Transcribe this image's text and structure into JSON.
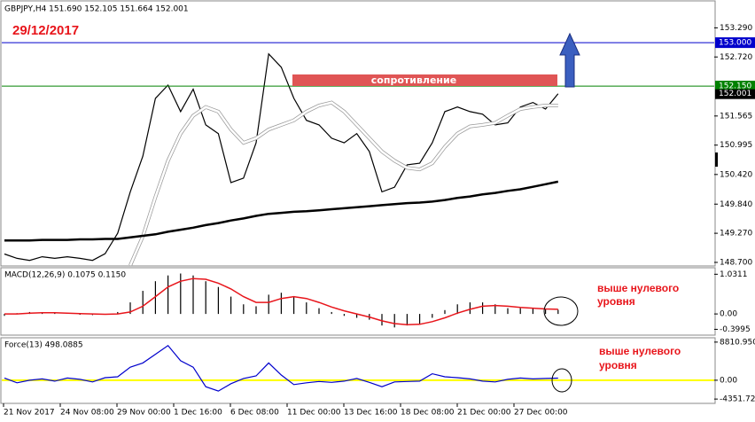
{
  "chart_data": [
    {
      "type": "line",
      "title": "GBPJPY,H4 151.690 152.105 151.664 152.001",
      "date_note": "29/12/2017",
      "resistance_label": "сопротивление",
      "ylim": [
        148.63,
        153.8
      ],
      "yticks": [
        {
          "value": 153.29,
          "label": "153.290"
        },
        {
          "value": 152.72,
          "label": "152.720"
        },
        151.565,
        150.995,
        {
          "value": 150.42,
          "label": "150.420"
        },
        {
          "value": 149.84,
          "label": "149.840"
        },
        {
          "value": 149.27,
          "label": "149.270"
        },
        {
          "value": 148.7,
          "label": "148.700"
        }
      ],
      "hlines": [
        {
          "value": 153,
          "label": "153.000",
          "color": "#0000cc"
        },
        {
          "value": 152.15,
          "label": "152.150",
          "color": "#008000"
        }
      ],
      "last_price": 152.001,
      "x_labels": [
        "21 Nov 2017",
        "24 Nov 08:00",
        "29 Nov 00:00",
        "1 Dec 16:00",
        "6 Dec 08:00",
        "11 Dec 00:00",
        "13 Dec 16:00",
        "18 Dec 08:00",
        "21 Dec 00:00",
        "27 Dec 00:00"
      ],
      "series": [
        {
          "color": "#000000",
          "width": 1.2,
          "values": [
            148.865,
            148.78,
            148.74,
            148.81,
            148.78,
            148.81,
            148.78,
            148.74,
            148.87,
            149.27,
            150.08,
            150.78,
            151.91,
            152.17,
            151.65,
            152.09,
            151.39,
            151.22,
            150.26,
            150.35,
            151.04,
            152.78,
            152.52,
            151.91,
            151.48,
            151.39,
            151.13,
            151.04,
            151.22,
            150.87,
            150.08,
            150.17,
            150.61,
            150.64,
            151.04,
            151.65,
            151.74,
            151.65,
            151.6,
            151.39,
            151.43,
            151.74,
            151.83,
            151.7,
            152.0
          ]
        },
        {
          "color": "#ffffff",
          "width": 2.5,
          "values": [
            null,
            null,
            null,
            null,
            null,
            null,
            null,
            null,
            null,
            null,
            148.64,
            149.21,
            149.98,
            150.69,
            151.22,
            151.57,
            151.74,
            151.65,
            151.3,
            151.04,
            151.13,
            151.3,
            151.39,
            151.48,
            151.65,
            151.77,
            151.83,
            151.65,
            151.39,
            151.13,
            150.87,
            150.69,
            150.55,
            150.52,
            150.64,
            150.96,
            151.22,
            151.36,
            151.39,
            151.43,
            151.57,
            151.7,
            151.74,
            151.77,
            151.77
          ]
        },
        {
          "color": "#000000",
          "width": 2.5,
          "values": [
            149.13,
            149.13,
            149.13,
            149.14,
            149.14,
            149.14,
            149.15,
            149.15,
            149.16,
            149.16,
            149.19,
            149.22,
            149.25,
            149.3,
            149.34,
            149.38,
            149.43,
            149.47,
            149.52,
            149.56,
            149.61,
            149.65,
            149.67,
            149.69,
            149.7,
            149.72,
            149.74,
            149.76,
            149.78,
            149.8,
            149.82,
            149.84,
            149.86,
            149.87,
            149.89,
            149.92,
            149.96,
            149.99,
            150.03,
            150.06,
            150.1,
            150.13,
            150.18,
            150.23,
            150.28
          ]
        }
      ]
    },
    {
      "type": "combo",
      "title": "MACD(12,26,9) 0.1075 0.1150",
      "note": [
        "выше нулевого",
        "уровня"
      ],
      "ylim": [
        -0.55,
        1.2
      ],
      "yticks": [
        1.0311,
        {
          "value": 0,
          "label": "0.00"
        },
        -0.3995
      ],
      "series": [
        {
          "style": "bar",
          "color": "#000000",
          "values": [
            -0.05,
            0.02,
            0.05,
            0.03,
            0.02,
            0.0,
            -0.02,
            -0.03,
            0.0,
            0.05,
            0.3,
            0.6,
            0.85,
            1.0,
            1.05,
            1.0,
            0.85,
            0.7,
            0.45,
            0.25,
            0.2,
            0.5,
            0.55,
            0.45,
            0.3,
            0.15,
            0.05,
            -0.05,
            -0.1,
            -0.15,
            -0.3,
            -0.35,
            -0.3,
            -0.25,
            -0.1,
            0.1,
            0.25,
            0.3,
            0.3,
            0.25,
            0.15,
            0.15,
            0.15,
            0.12,
            0.11
          ]
        },
        {
          "style": "line",
          "color": "#e8151b",
          "values": [
            0.0,
            0.0,
            0.02,
            0.03,
            0.03,
            0.02,
            0.01,
            0.0,
            -0.01,
            0.0,
            0.05,
            0.2,
            0.45,
            0.7,
            0.85,
            0.92,
            0.9,
            0.8,
            0.65,
            0.45,
            0.3,
            0.3,
            0.4,
            0.45,
            0.4,
            0.3,
            0.18,
            0.08,
            0.0,
            -0.08,
            -0.18,
            -0.25,
            -0.28,
            -0.27,
            -0.2,
            -0.1,
            0.02,
            0.12,
            0.2,
            0.22,
            0.2,
            0.17,
            0.15,
            0.13,
            0.12
          ]
        }
      ]
    },
    {
      "type": "line",
      "title": "Force(13) 498.0885",
      "note": [
        "выше нулевого",
        "уровня"
      ],
      "ylim": [
        -5350,
        9810
      ],
      "yticks": [
        {
          "value": 8810.95,
          "label": "8810.950"
        },
        {
          "value": 0,
          "label": "0.00"
        },
        -4351.726
      ],
      "zero_color": "#ffff00",
      "series": [
        {
          "color": "#0000cc",
          "width": 1.2,
          "values": [
            500,
            -600,
            0,
            300,
            -200,
            500,
            200,
            -400,
            600,
            800,
            3000,
            4000,
            6000,
            8000,
            4500,
            3000,
            -1500,
            -2500,
            -800,
            400,
            1000,
            4000,
            1200,
            -1000,
            -600,
            -300,
            -500,
            -200,
            400,
            -500,
            -1500,
            -400,
            -300,
            -200,
            1500,
            800,
            600,
            300,
            -200,
            -400,
            200,
            500,
            300,
            400,
            498.0885
          ]
        }
      ]
    }
  ]
}
